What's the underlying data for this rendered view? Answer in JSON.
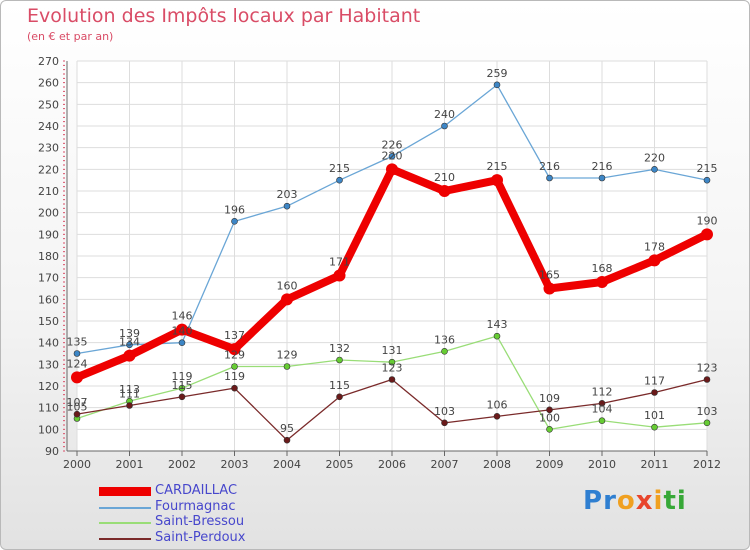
{
  "header": {
    "title": "Evolution des Impôts locaux par Habitant",
    "subtitle": "(en € et par an)"
  },
  "logo": {
    "letters": [
      {
        "ch": "P",
        "color": "#2f7fd1"
      },
      {
        "ch": "r",
        "color": "#2f7fd1"
      },
      {
        "ch": "o",
        "color": "#f0a020"
      },
      {
        "ch": "x",
        "color": "#e8452c"
      },
      {
        "ch": "i",
        "color": "#f0a020"
      },
      {
        "ch": "t",
        "color": "#37a837"
      },
      {
        "ch": "i",
        "color": "#37a837"
      }
    ]
  },
  "chart_data": {
    "type": "line",
    "title": "Evolution des Impôts locaux par Habitant",
    "subtitle": "(en € et par an)",
    "xlabel": "",
    "ylabel": "",
    "x": [
      "2000",
      "2001",
      "2002",
      "2003",
      "2004",
      "2005",
      "2006",
      "2007",
      "2008",
      "2009",
      "2010",
      "2011",
      "2012"
    ],
    "ylim": [
      90,
      270
    ],
    "yticks": [
      90,
      100,
      110,
      120,
      130,
      140,
      150,
      160,
      170,
      180,
      190,
      200,
      210,
      220,
      230,
      240,
      250,
      260,
      270
    ],
    "grid": true,
    "legend_position": "bottom-left",
    "series": [
      {
        "name": "CARDAILLAC",
        "color": "#ee0000",
        "marker": "#ee0000",
        "width": "thick",
        "values": [
          124,
          134,
          146,
          137,
          160,
          171,
          220,
          210,
          215,
          165,
          168,
          178,
          190
        ],
        "labels": [
          "124",
          "134",
          "146",
          "137",
          "160",
          "171",
          "220",
          "210",
          "215",
          "165",
          "168",
          "178",
          "190"
        ]
      },
      {
        "name": "Fourmagnac",
        "color": "#6aa6d6",
        "marker": "#3d86c6",
        "width": "thin",
        "values": [
          135,
          139,
          140,
          196,
          203,
          215,
          226,
          240,
          259,
          216,
          216,
          220,
          215
        ],
        "labels": [
          "135",
          "139",
          "140",
          "196",
          "203",
          "215",
          "226",
          "240",
          "259",
          "216",
          "216",
          "220",
          "215"
        ]
      },
      {
        "name": "Saint-Bressou",
        "color": "#99dd77",
        "marker": "#66cc33",
        "width": "thin",
        "values": [
          105,
          113,
          119,
          129,
          129,
          132,
          131,
          136,
          143,
          100,
          104,
          101,
          103
        ],
        "labels": [
          "105",
          "113",
          "119",
          "129",
          "129",
          "132",
          "131",
          "136",
          "143",
          "100",
          "104",
          "101",
          "103"
        ]
      },
      {
        "name": "Saint-Perdoux",
        "color": "#7a2a2a",
        "marker": "#6a1a1a",
        "width": "thin",
        "values": [
          107,
          111,
          115,
          119,
          95,
          115,
          123,
          103,
          106,
          109,
          112,
          117,
          123
        ],
        "labels": [
          "107",
          "111",
          "115",
          "119",
          "95",
          "115",
          "123",
          "103",
          "106",
          "109",
          "112",
          "117",
          "123"
        ]
      }
    ]
  }
}
